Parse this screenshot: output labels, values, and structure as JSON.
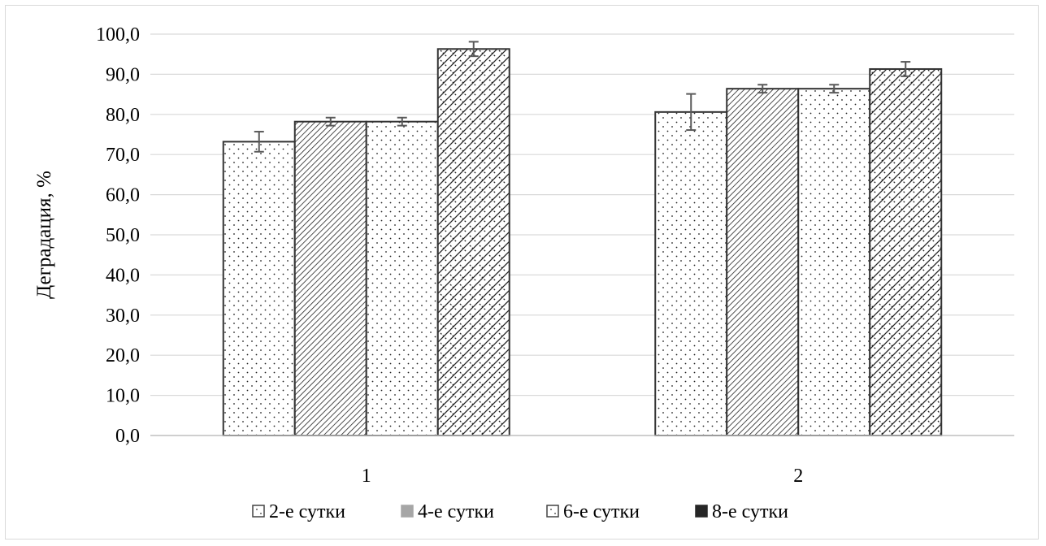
{
  "chart_data": {
    "type": "bar",
    "title": "",
    "xlabel": "",
    "ylabel": "Деградация, %",
    "ylim": [
      0,
      100
    ],
    "yticks": [
      "0,0",
      "10,0",
      "20,0",
      "30,0",
      "40,0",
      "50,0",
      "60,0",
      "70,0",
      "80,0",
      "90,0",
      "100,0"
    ],
    "categories": [
      "1",
      "2"
    ],
    "grid": true,
    "legend_position": "bottom",
    "series": [
      {
        "name": "2-е сутки",
        "values": [
          73.2,
          80.6
        ],
        "errors": [
          2.5,
          4.5
        ],
        "pattern": "dots-sparse",
        "legend_swatch": "hollow-dotted"
      },
      {
        "name": "4-е сутки",
        "values": [
          78.2,
          86.4
        ],
        "errors": [
          1.0,
          1.0
        ],
        "pattern": "diagonal-dense",
        "legend_swatch": "gray-filled"
      },
      {
        "name": "6-е сутки",
        "values": [
          78.2,
          86.4
        ],
        "errors": [
          1.0,
          1.0
        ],
        "pattern": "dots-sparse",
        "legend_swatch": "hollow-dotted"
      },
      {
        "name": "8-е сутки",
        "values": [
          96.3,
          91.3
        ],
        "errors": [
          1.8,
          1.8
        ],
        "pattern": "diagonal-cross",
        "legend_swatch": "black-filled"
      }
    ],
    "colors": {
      "bar_outline": "#333333",
      "grid": "#d9d9d9",
      "error_bar": "#595959",
      "axis": "#bfbfbf"
    }
  }
}
